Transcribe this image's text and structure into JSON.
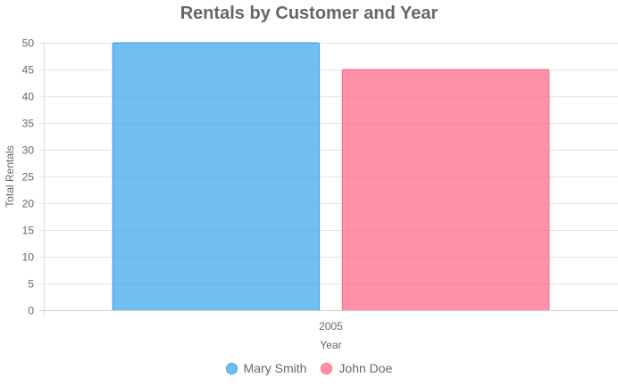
{
  "chart_data": {
    "type": "bar",
    "title": "Rentals by Customer and Year",
    "xlabel": "Year",
    "ylabel": "Total Rentals",
    "categories": [
      "2005"
    ],
    "ylim": [
      0,
      50
    ],
    "yticks": [
      0,
      5,
      10,
      15,
      20,
      25,
      30,
      35,
      40,
      45,
      50
    ],
    "grid": true,
    "legend_position": "bottom",
    "series": [
      {
        "name": "Mary Smith",
        "values": [
          50
        ],
        "color": "#36A2EB"
      },
      {
        "name": "John Doe",
        "values": [
          45
        ],
        "color": "#FF6384"
      }
    ]
  }
}
